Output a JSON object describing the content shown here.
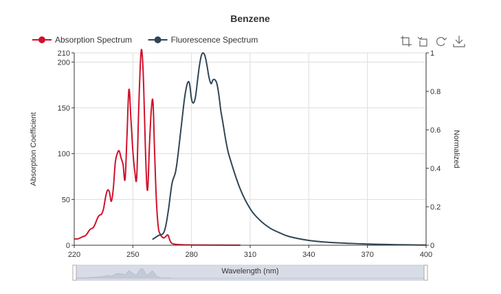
{
  "chart_data": {
    "type": "line",
    "title": "Benzene",
    "xlabel": "Wavelength (nm)",
    "ylabel_left": "Absorption Coefficient",
    "ylabel_right": "Normalized",
    "xlim": [
      220,
      400
    ],
    "ylim_left": [
      0,
      210
    ],
    "ylim_right": [
      0,
      1
    ],
    "x_ticks": [
      220,
      250,
      280,
      310,
      340,
      370,
      400
    ],
    "y_left_ticks": [
      0,
      50,
      100,
      150,
      200,
      210
    ],
    "y_right_ticks": [
      0,
      0.2,
      0.4,
      0.6,
      0.8,
      1
    ],
    "legend_position": "top-left",
    "grid": true,
    "series": [
      {
        "name": "Absorption Spectrum",
        "axis": "left",
        "color": "#d0112b",
        "x": [
          220,
          222,
          224,
          226,
          228,
          230,
          232,
          233,
          234,
          235,
          236,
          237,
          238,
          239,
          240,
          241,
          242,
          243,
          244,
          245,
          246,
          247,
          248,
          249,
          250,
          251,
          252,
          253,
          254,
          254.7,
          255.5,
          256.5,
          257.5,
          258.5,
          259.5,
          260.3,
          261,
          262,
          263,
          264,
          265,
          266,
          267,
          268,
          269,
          270,
          272,
          275,
          280,
          290,
          300,
          305
        ],
        "values": [
          7,
          7,
          9,
          11,
          17,
          20,
          30,
          33,
          34,
          40,
          52,
          60,
          58,
          48,
          62,
          90,
          100,
          103,
          95,
          88,
          72,
          120,
          170,
          138,
          103,
          80,
          75,
          150,
          205,
          210,
          175,
          100,
          60,
          110,
          150,
          156,
          110,
          50,
          20,
          12,
          9,
          8,
          10,
          11,
          5,
          2,
          1,
          0.5,
          0.3,
          0.2,
          0.1,
          0.1
        ]
      },
      {
        "name": "Fluorescence Spectrum",
        "axis": "right",
        "color": "#2f4554",
        "x": [
          260,
          263,
          266,
          268,
          270,
          272,
          274,
          276,
          277,
          278,
          279,
          280,
          281,
          282,
          283,
          284,
          285,
          286,
          287,
          288,
          289,
          290,
          291,
          292,
          293,
          294,
          295,
          296,
          298,
          300,
          305,
          310,
          315,
          320,
          325,
          330,
          340,
          350,
          360,
          370,
          380,
          390,
          400
        ],
        "values": [
          0.03,
          0.05,
          0.07,
          0.17,
          0.32,
          0.39,
          0.55,
          0.73,
          0.8,
          0.845,
          0.84,
          0.76,
          0.74,
          0.77,
          0.85,
          0.93,
          0.985,
          1.0,
          0.98,
          0.93,
          0.87,
          0.84,
          0.86,
          0.86,
          0.84,
          0.78,
          0.7,
          0.64,
          0.52,
          0.44,
          0.29,
          0.19,
          0.13,
          0.09,
          0.065,
          0.045,
          0.025,
          0.015,
          0.01,
          0.006,
          0.004,
          0.002,
          0.001
        ]
      }
    ]
  },
  "toolbox": {
    "icons": [
      "zoom-icon",
      "zoom-reset-icon",
      "restore-icon",
      "save-image-icon"
    ]
  }
}
